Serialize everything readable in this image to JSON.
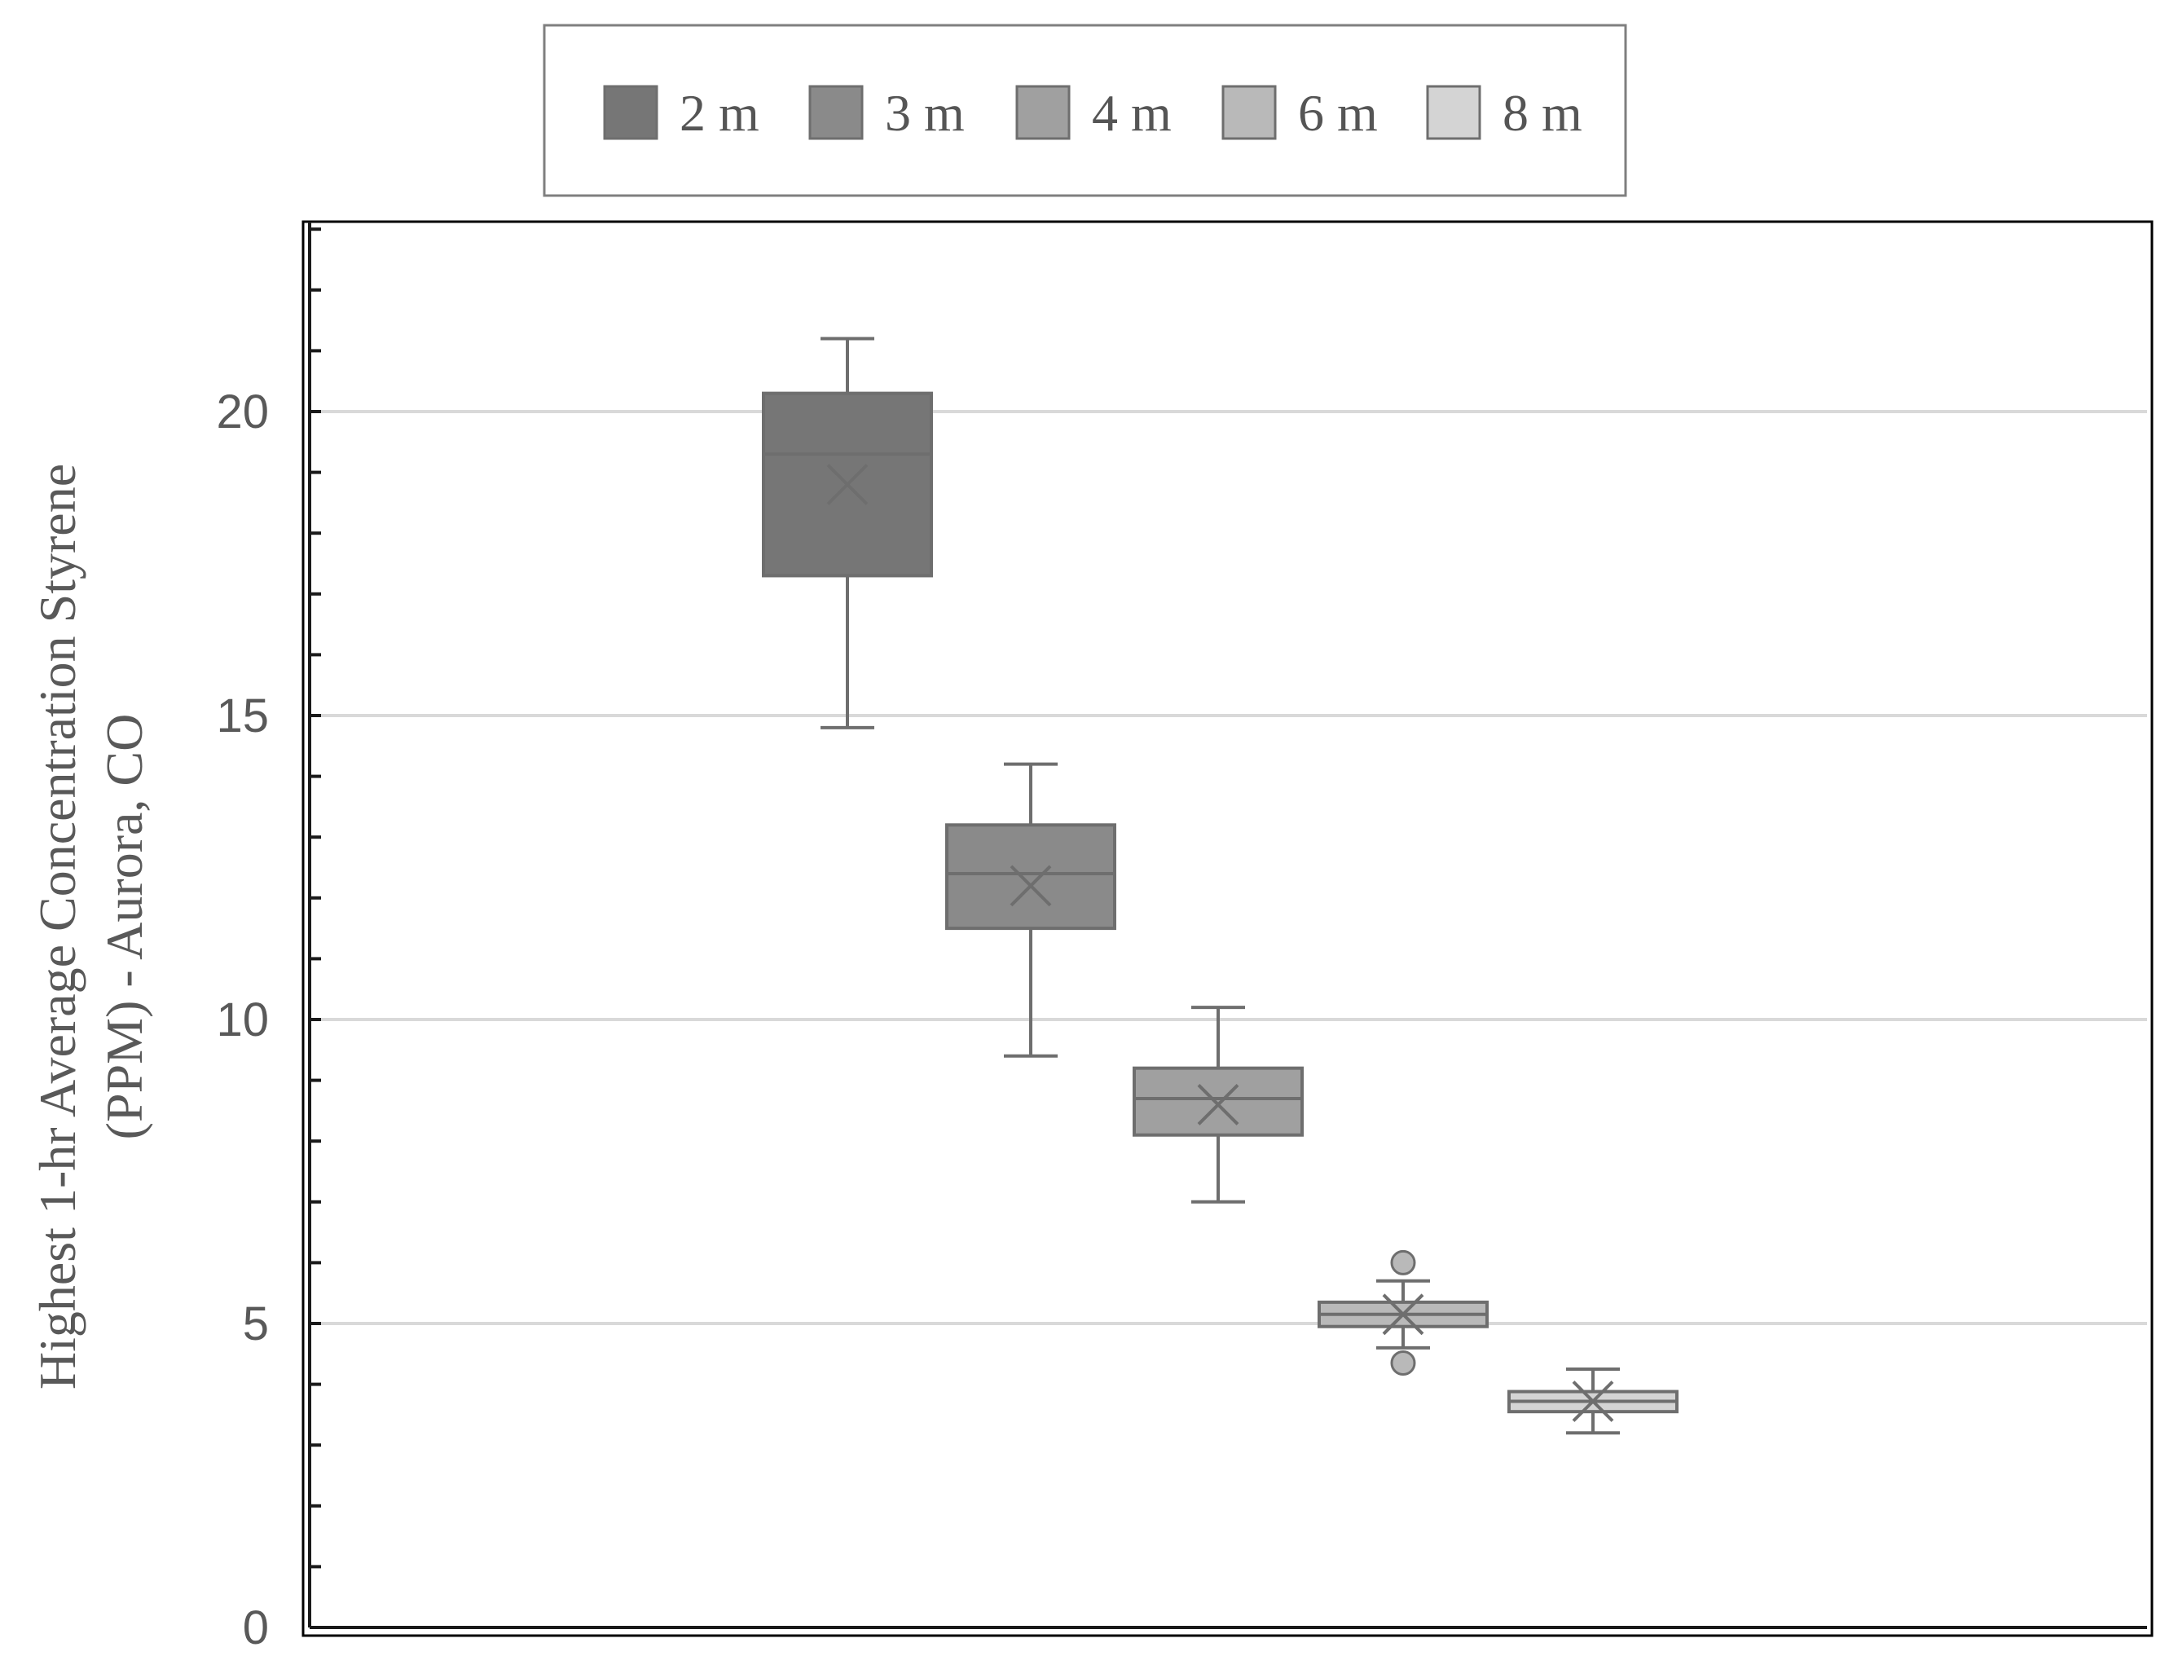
{
  "chart_data": {
    "type": "box",
    "title": "",
    "xlabel": "",
    "ylabel": "Highest 1-hr Average Concentration Styrene (PPM) - Aurora, CO",
    "ylabel_lines": [
      "Highest 1-hr Average Concentration Styrene",
      "(PPM) - Aurora, CO"
    ],
    "ylim": [
      0,
      23
    ],
    "yticks": [
      0,
      5,
      10,
      15,
      20
    ],
    "minor_tick_step": 1,
    "grid": true,
    "legend_position": "top-center",
    "series": [
      {
        "name": "2 m",
        "color": "#767676",
        "min": 14.8,
        "q1": 17.3,
        "median": 19.3,
        "q3": 20.3,
        "max": 21.2,
        "mean": 18.8,
        "outliers": []
      },
      {
        "name": "3 m",
        "color": "#8a8a8a",
        "min": 9.4,
        "q1": 11.5,
        "median": 12.4,
        "q3": 13.2,
        "max": 14.2,
        "mean": 12.2,
        "outliers": []
      },
      {
        "name": "4 m",
        "color": "#a0a0a0",
        "min": 7.0,
        "q1": 8.1,
        "median": 8.7,
        "q3": 9.2,
        "max": 10.2,
        "mean": 8.6,
        "outliers": []
      },
      {
        "name": "6 m",
        "color": "#b9b9b9",
        "min": 4.6,
        "q1": 4.95,
        "median": 5.15,
        "q3": 5.35,
        "max": 5.7,
        "mean": 5.15,
        "outliers": [
          6.0,
          4.35
        ]
      },
      {
        "name": "8 m",
        "color": "#d4d4d4",
        "min": 3.2,
        "q1": 3.55,
        "median": 3.72,
        "q3": 3.88,
        "max": 4.25,
        "mean": 3.72,
        "outliers": []
      }
    ],
    "colors": {
      "box_stroke": "#6e6e6e",
      "gridline": "#d9d9d9",
      "axis": "#1a1a1a",
      "frame": "#000000",
      "legend_border": "#7f7f7f",
      "text": "#595959"
    }
  }
}
